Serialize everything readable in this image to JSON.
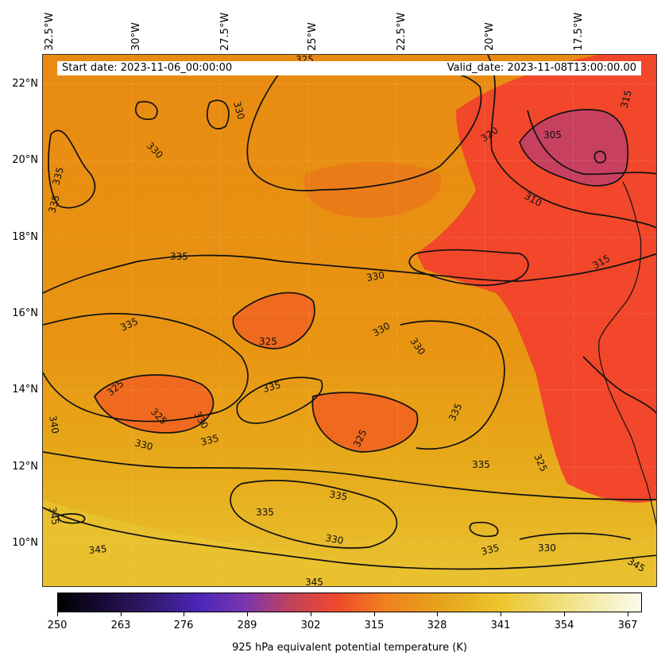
{
  "map": {
    "lon_ticks": [
      "32.5°W",
      "30°W",
      "27.5°W",
      "25°W",
      "22.5°W",
      "20°W",
      "17.5°W"
    ],
    "lat_ticks": [
      "22°N",
      "20°N",
      "18°N",
      "16°N",
      "14°N",
      "12°N",
      "10°N"
    ],
    "start_date": "Start date: 2023-11-06_00:00:00",
    "valid_date": "Valid_date: 2023-11-08T13:00:00.00",
    "contour_labels": [
      "325",
      "330",
      "330",
      "335",
      "335",
      "335",
      "320",
      "305",
      "310",
      "315",
      "315",
      "335",
      "330",
      "325",
      "330",
      "330",
      "335",
      "325",
      "325",
      "330",
      "335",
      "330",
      "335",
      "335",
      "325",
      "325",
      "335",
      "335",
      "330",
      "335",
      "330",
      "345",
      "345",
      "340",
      "345",
      "345"
    ],
    "colors": {
      "base_orange": "#e8930f",
      "warm_red": "#f24a2a",
      "cool_magenta": "#c9405e",
      "yellow_south": "#e8c02a"
    }
  },
  "colorbar": {
    "ticks": [
      "250",
      "263",
      "276",
      "289",
      "302",
      "315",
      "328",
      "341",
      "354",
      "367"
    ],
    "label": "925 hPa equivalent potential temperature (K)",
    "range": [
      250,
      370
    ]
  }
}
